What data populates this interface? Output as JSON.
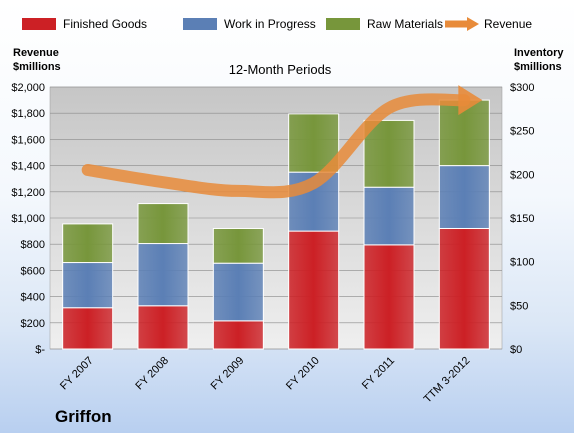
{
  "company_name": "Griffon",
  "chart_data": {
    "type": "bar",
    "stacked": true,
    "title": "12-Month Periods",
    "categories": [
      "FY 2007",
      "FY 2008",
      "FY 2009",
      "FY 2010",
      "FY 2011",
      "TTM 3-2012"
    ],
    "series": [
      {
        "name": "Finished Goods",
        "color": "#cc2025",
        "values": [
          315,
          330,
          215,
          900,
          795,
          920
        ]
      },
      {
        "name": "Work in Progress",
        "color": "#5b7fb5",
        "values": [
          345,
          475,
          440,
          450,
          440,
          480
        ]
      },
      {
        "name": "Raw Materials",
        "color": "#77963b",
        "values": [
          295,
          305,
          265,
          445,
          510,
          500
        ]
      }
    ],
    "line_series": {
      "name": "Revenue",
      "color": "#e88b3a",
      "values": [
        205,
        191,
        181,
        190,
        276,
        285
      ],
      "axis": "right"
    },
    "left_axis": {
      "label_line1": "Revenue",
      "label_line2": "$millions",
      "min": 0,
      "max": 2000,
      "step": 200,
      "tick_labels": [
        "$-",
        "$200",
        "$400",
        "$600",
        "$800",
        "$1,000",
        "$1,200",
        "$1,400",
        "$1,600",
        "$1,800",
        "$2,000"
      ]
    },
    "right_axis": {
      "label_line1": "Inventory",
      "label_line2": "$millions",
      "min": 0,
      "max": 300,
      "step": 50,
      "tick_labels": [
        "$0",
        "$50",
        "$100",
        "$150",
        "$200",
        "$250",
        "$300"
      ]
    },
    "legend_position": "top",
    "grid": true
  }
}
